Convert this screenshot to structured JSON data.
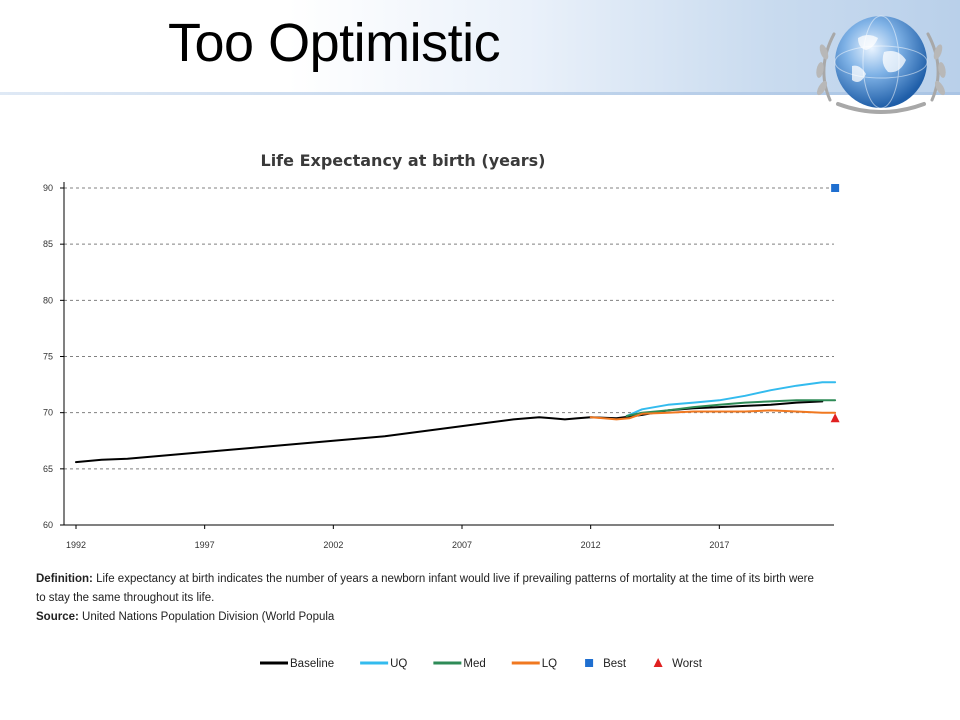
{
  "slide": {
    "title": "Too Optimistic"
  },
  "chart_data": {
    "type": "line",
    "title": "Life Expectancy at birth (years)",
    "xlabel": "",
    "ylabel": "",
    "xlim": [
      1992,
      2022
    ],
    "ylim": [
      60,
      90
    ],
    "x_ticks": [
      1992,
      1997,
      2002,
      2007,
      2012,
      2017
    ],
    "y_ticks": [
      60,
      65,
      70,
      75,
      80,
      85,
      90
    ],
    "grid": "horizontal-dashed",
    "legend_position": "bottom",
    "series": [
      {
        "name": "Baseline",
        "color": "#000000",
        "style": "line",
        "x": [
          1992,
          1993,
          1994,
          1995,
          1996,
          1997,
          1998,
          1999,
          2000,
          2001,
          2002,
          2003,
          2004,
          2005,
          2006,
          2007,
          2008,
          2009,
          2010,
          2010.5,
          2011,
          2011.5,
          2012,
          2013,
          2014,
          2015,
          2016,
          2017,
          2018,
          2019,
          2020,
          2021
        ],
        "y": [
          65.6,
          65.8,
          65.9,
          66.1,
          66.3,
          66.5,
          66.7,
          66.9,
          67.1,
          67.3,
          67.5,
          67.7,
          67.9,
          68.2,
          68.5,
          68.8,
          69.1,
          69.4,
          69.6,
          69.5,
          69.4,
          69.5,
          69.6,
          69.5,
          69.8,
          70.2,
          70.4,
          70.5,
          70.6,
          70.7,
          70.9,
          71.0
        ]
      },
      {
        "name": "UQ",
        "color": "#33bbee",
        "style": "line",
        "x": [
          2013.4,
          2014,
          2015,
          2016,
          2017,
          2018,
          2019,
          2020,
          2021,
          2021.5
        ],
        "y": [
          69.7,
          70.3,
          70.7,
          70.9,
          71.1,
          71.5,
          72.0,
          72.4,
          72.7,
          72.7
        ]
      },
      {
        "name": "Med",
        "color": "#2e8b57",
        "style": "line",
        "x": [
          2013.4,
          2014,
          2015,
          2016,
          2017,
          2018,
          2019,
          2020,
          2021,
          2021.5
        ],
        "y": [
          69.7,
          70.0,
          70.2,
          70.5,
          70.7,
          70.9,
          71.0,
          71.1,
          71.1,
          71.1
        ]
      },
      {
        "name": "LQ",
        "color": "#f07820",
        "style": "line",
        "x": [
          2012,
          2012.5,
          2013,
          2013.5,
          2014,
          2015,
          2016,
          2017,
          2018,
          2019,
          2020,
          2021,
          2021.5
        ],
        "y": [
          69.6,
          69.5,
          69.4,
          69.5,
          69.9,
          70.0,
          70.1,
          70.1,
          70.1,
          70.2,
          70.1,
          70.0,
          70.0
        ]
      },
      {
        "name": "Best",
        "color": "#1f6fd0",
        "style": "square",
        "x": [
          2021.5
        ],
        "y": [
          90.0
        ]
      },
      {
        "name": "Worst",
        "color": "#e02020",
        "style": "triangle",
        "x": [
          2021.5
        ],
        "y": [
          69.5
        ]
      }
    ]
  },
  "footnote": {
    "definition_label": "Definition:",
    "definition_line1": "Life expectancy at birth indicates the number of years a newborn infant would live if prevailing patterns of mortality at the time of its birth were",
    "definition_line2": "to stay the same throughout its life.",
    "source_label": "Source:",
    "source_text": "United Nations Population Division (World Popula"
  },
  "colors": {
    "axis": "#000000",
    "grid": "#808080"
  }
}
